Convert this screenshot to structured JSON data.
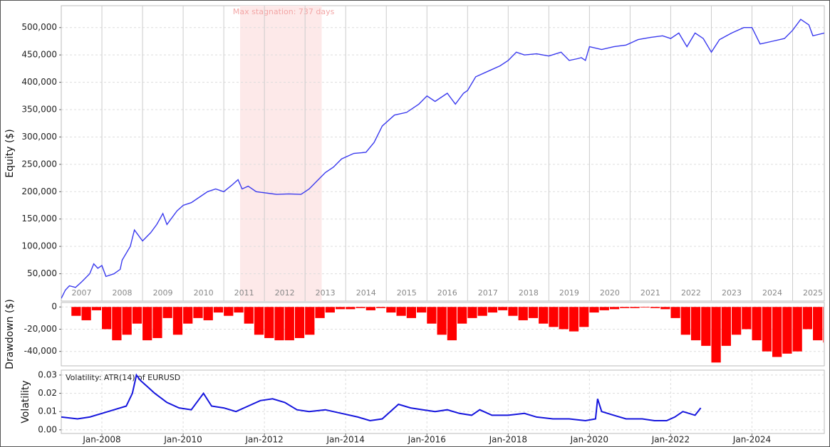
{
  "chart_data": [
    {
      "type": "line",
      "ylabel": "Equity ($)",
      "color": "#3a3aee",
      "grid": true,
      "xlim": [
        2007.0,
        2025.78
      ],
      "ylim": [
        0,
        540000
      ],
      "yticks": [
        {
          "value": 50000,
          "label": "50,000"
        },
        {
          "value": 100000,
          "label": "100,000"
        },
        {
          "value": 150000,
          "label": "150,000"
        },
        {
          "value": 200000,
          "label": "200,000"
        },
        {
          "value": 250000,
          "label": "250,000"
        },
        {
          "value": 300000,
          "label": "300,000"
        },
        {
          "value": 350000,
          "label": "350,000"
        },
        {
          "value": 400000,
          "label": "400,000"
        },
        {
          "value": 450000,
          "label": "450,000"
        },
        {
          "value": 500000,
          "label": "500,000"
        }
      ],
      "xticks": [
        {
          "value": 2007.5,
          "label": "2007"
        },
        {
          "value": 2008.5,
          "label": "2008"
        },
        {
          "value": 2009.5,
          "label": "2009"
        },
        {
          "value": 2010.5,
          "label": "2010"
        },
        {
          "value": 2011.5,
          "label": "2011"
        },
        {
          "value": 2012.5,
          "label": "2012"
        },
        {
          "value": 2013.5,
          "label": "2013"
        },
        {
          "value": 2014.5,
          "label": "2014"
        },
        {
          "value": 2015.5,
          "label": "2015"
        },
        {
          "value": 2016.5,
          "label": "2016"
        },
        {
          "value": 2017.5,
          "label": "2017"
        },
        {
          "value": 2018.5,
          "label": "2018"
        },
        {
          "value": 2019.5,
          "label": "2019"
        },
        {
          "value": 2020.5,
          "label": "2020"
        },
        {
          "value": 2021.5,
          "label": "2021"
        },
        {
          "value": 2022.5,
          "label": "2022"
        },
        {
          "value": 2023.5,
          "label": "2023"
        },
        {
          "value": 2024.5,
          "label": "2024"
        },
        {
          "value": 2025.5,
          "label": "2025"
        }
      ],
      "stagnation": {
        "label": "Max stagnation: 737 days",
        "start": 2011.4,
        "end": 2013.41,
        "color": "#fde9e9"
      },
      "x": [
        2007.0,
        2007.1,
        2007.2,
        2007.35,
        2007.5,
        2007.7,
        2007.8,
        2007.9,
        2008.0,
        2008.1,
        2008.3,
        2008.45,
        2008.5,
        2008.7,
        2008.8,
        2008.9,
        2009.0,
        2009.2,
        2009.35,
        2009.5,
        2009.6,
        2009.7,
        2009.85,
        2010.0,
        2010.2,
        2010.4,
        2010.6,
        2010.8,
        2011.0,
        2011.2,
        2011.35,
        2011.45,
        2011.6,
        2011.8,
        2012.0,
        2012.3,
        2012.6,
        2012.9,
        2013.1,
        2013.3,
        2013.5,
        2013.7,
        2013.9,
        2014.2,
        2014.5,
        2014.7,
        2014.9,
        2015.2,
        2015.5,
        2015.8,
        2016.0,
        2016.2,
        2016.5,
        2016.7,
        2016.9,
        2017.0,
        2017.2,
        2017.5,
        2017.8,
        2018.0,
        2018.2,
        2018.4,
        2018.7,
        2019.0,
        2019.3,
        2019.5,
        2019.7,
        2019.8,
        2019.9,
        2020.0,
        2020.3,
        2020.6,
        2020.9,
        2021.2,
        2021.5,
        2021.8,
        2022.0,
        2022.2,
        2022.4,
        2022.6,
        2022.8,
        2023.0,
        2023.2,
        2023.5,
        2023.8,
        2024.0,
        2024.2,
        2024.5,
        2024.8,
        2025.0,
        2025.2,
        2025.4,
        2025.5,
        2025.78
      ],
      "values": [
        5000,
        20000,
        28000,
        25000,
        35000,
        50000,
        68000,
        60000,
        65000,
        45000,
        50000,
        58000,
        75000,
        100000,
        130000,
        120000,
        110000,
        125000,
        140000,
        160000,
        140000,
        150000,
        165000,
        175000,
        180000,
        190000,
        200000,
        205000,
        200000,
        212000,
        222000,
        205000,
        210000,
        200000,
        198000,
        195000,
        196000,
        195000,
        205000,
        220000,
        235000,
        245000,
        260000,
        270000,
        272000,
        290000,
        320000,
        340000,
        345000,
        360000,
        375000,
        365000,
        380000,
        360000,
        380000,
        385000,
        410000,
        420000,
        430000,
        440000,
        455000,
        450000,
        452000,
        448000,
        455000,
        440000,
        443000,
        445000,
        440000,
        465000,
        460000,
        465000,
        468000,
        478000,
        482000,
        485000,
        480000,
        490000,
        465000,
        490000,
        480000,
        455000,
        478000,
        490000,
        500000,
        500000,
        470000,
        475000,
        480000,
        495000,
        515000,
        505000,
        485000,
        490000
      ]
    },
    {
      "type": "bar",
      "ylabel": "Drawdown ($)",
      "color": "#ff0000",
      "grid": true,
      "xlim": [
        2007.0,
        2025.78
      ],
      "ylim": [
        -53000,
        4000
      ],
      "yticks": [
        {
          "value": -40000,
          "label": "-40,000"
        },
        {
          "value": -20000,
          "label": "-20,000"
        },
        0
      ],
      "x": [
        2007.0,
        2007.25,
        2007.5,
        2007.75,
        2008.0,
        2008.25,
        2008.5,
        2008.75,
        2009.0,
        2009.25,
        2009.5,
        2009.75,
        2010.0,
        2010.25,
        2010.5,
        2010.75,
        2011.0,
        2011.25,
        2011.5,
        2011.75,
        2012.0,
        2012.25,
        2012.5,
        2012.75,
        2013.0,
        2013.25,
        2013.5,
        2013.75,
        2014.0,
        2014.25,
        2014.5,
        2014.75,
        2015.0,
        2015.25,
        2015.5,
        2015.75,
        2016.0,
        2016.25,
        2016.5,
        2016.75,
        2017.0,
        2017.25,
        2017.5,
        2017.75,
        2018.0,
        2018.25,
        2018.5,
        2018.75,
        2019.0,
        2019.25,
        2019.5,
        2019.75,
        2020.0,
        2020.25,
        2020.5,
        2020.75,
        2021.0,
        2021.25,
        2021.5,
        2021.75,
        2022.0,
        2022.25,
        2022.5,
        2022.75,
        2023.0,
        2023.25,
        2023.5,
        2023.75,
        2024.0,
        2024.25,
        2024.5,
        2024.75,
        2025.0,
        2025.25,
        2025.5,
        2025.75
      ],
      "values": [
        0,
        -8000,
        -12000,
        -3000,
        -20000,
        -30000,
        -25000,
        -15000,
        -30000,
        -28000,
        -10000,
        -25000,
        -15000,
        -10000,
        -12000,
        -5000,
        -8000,
        -5000,
        -15000,
        -25000,
        -28000,
        -30000,
        -30000,
        -28000,
        -25000,
        -10000,
        -5000,
        -2000,
        -2000,
        -1000,
        -3000,
        -1000,
        -5000,
        -8000,
        -10000,
        -5000,
        -15000,
        -25000,
        -30000,
        -15000,
        -10000,
        -8000,
        -5000,
        -3000,
        -8000,
        -12000,
        -10000,
        -15000,
        -18000,
        -20000,
        -22000,
        -18000,
        -5000,
        -3000,
        -2000,
        -1000,
        -1000,
        -500,
        -1000,
        -2000,
        -10000,
        -25000,
        -30000,
        -35000,
        -50000,
        -35000,
        -25000,
        -20000,
        -30000,
        -40000,
        -45000,
        -42000,
        -40000,
        -20000,
        -30000,
        -32000
      ]
    },
    {
      "type": "line",
      "ylabel": "Volatility",
      "annotation": "Volatility: ATR(14) of EURUSD",
      "color": "#1515dd",
      "grid": true,
      "xlim": [
        2007.0,
        2025.78
      ],
      "ylim": [
        -0.002,
        0.0327
      ],
      "yticks": [
        {
          "value": 0,
          "label": "0.00"
        },
        0.01,
        0.02,
        0.03
      ],
      "xticks": [
        {
          "value": 2008,
          "label": "Jan-2008"
        },
        {
          "value": 2010,
          "label": "Jan-2010"
        },
        {
          "value": 2012,
          "label": "Jan-2012"
        },
        {
          "value": 2014,
          "label": "Jan-2014"
        },
        {
          "value": 2016,
          "label": "Jan-2016"
        },
        {
          "value": 2018,
          "label": "Jan-2018"
        },
        {
          "value": 2020,
          "label": "Jan-2020"
        },
        {
          "value": 2022,
          "label": "Jan-2022"
        },
        {
          "value": 2024,
          "label": "Jan-2024"
        }
      ],
      "x": [
        2007.0,
        2007.4,
        2007.7,
        2008.0,
        2008.3,
        2008.6,
        2008.75,
        2008.85,
        2008.95,
        2009.1,
        2009.3,
        2009.6,
        2009.9,
        2010.2,
        2010.4,
        2010.5,
        2010.7,
        2011.0,
        2011.3,
        2011.6,
        2011.9,
        2012.2,
        2012.5,
        2012.8,
        2013.1,
        2013.5,
        2013.9,
        2014.3,
        2014.6,
        2014.9,
        2015.1,
        2015.3,
        2015.6,
        2015.9,
        2016.2,
        2016.5,
        2016.8,
        2017.1,
        2017.3,
        2017.6,
        2018.0,
        2018.4,
        2018.7,
        2019.1,
        2019.5,
        2019.9,
        2020.15,
        2020.2,
        2020.3,
        2020.6,
        2020.9,
        2021.3,
        2021.6,
        2021.9,
        2022.1,
        2022.3,
        2022.6,
        2022.74
      ],
      "values": [
        0.007,
        0.006,
        0.007,
        0.009,
        0.011,
        0.013,
        0.02,
        0.03,
        0.027,
        0.024,
        0.02,
        0.015,
        0.012,
        0.011,
        0.017,
        0.02,
        0.013,
        0.012,
        0.01,
        0.013,
        0.016,
        0.017,
        0.015,
        0.011,
        0.01,
        0.011,
        0.009,
        0.007,
        0.005,
        0.006,
        0.01,
        0.014,
        0.012,
        0.011,
        0.01,
        0.011,
        0.009,
        0.008,
        0.011,
        0.008,
        0.008,
        0.009,
        0.007,
        0.006,
        0.006,
        0.005,
        0.006,
        0.017,
        0.01,
        0.008,
        0.006,
        0.006,
        0.005,
        0.005,
        0.007,
        0.01,
        0.008,
        0.012
      ]
    }
  ]
}
